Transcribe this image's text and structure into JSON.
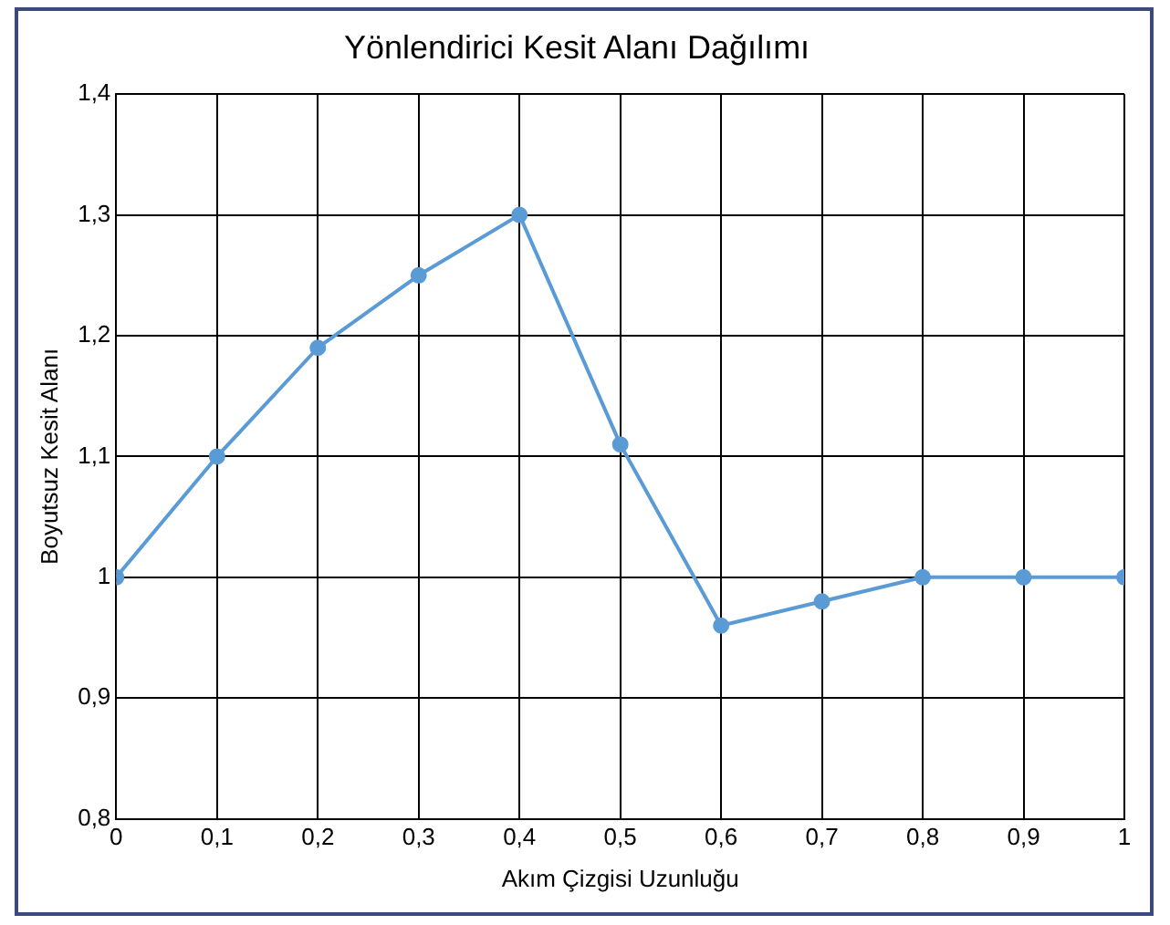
{
  "chart_data": {
    "type": "line",
    "title": "Yönlendirici Kesit Alanı Dağılımı",
    "xlabel": "Akım Çizgisi Uzunluğu",
    "ylabel": "Boyutsuz Kesit Alanı",
    "x": [
      0,
      0.1,
      0.2,
      0.3,
      0.4,
      0.5,
      0.6,
      0.7,
      0.8,
      0.9,
      1
    ],
    "series": [
      {
        "color": "#5b9bd5",
        "values": [
          1,
          1.1,
          1.19,
          1.25,
          1.3,
          1.11,
          0.96,
          0.98,
          1,
          1,
          1
        ]
      }
    ],
    "xlim": [
      0,
      1
    ],
    "ylim": [
      0.8,
      1.4
    ],
    "xticks": [
      0,
      {
        "value": 0.1,
        "label": "0,1"
      },
      {
        "value": 0.2,
        "label": "0,2"
      },
      {
        "value": 0.3,
        "label": "0,3"
      },
      {
        "value": 0.4,
        "label": "0,4"
      },
      {
        "value": 0.5,
        "label": "0,5"
      },
      {
        "value": 0.6,
        "label": "0,6"
      },
      {
        "value": 0.7,
        "label": "0,7"
      },
      {
        "value": 0.8,
        "label": "0,8"
      },
      {
        "value": 0.9,
        "label": "0,9"
      },
      1
    ],
    "yticks": [
      {
        "value": 0.8,
        "label": "0,8"
      },
      {
        "value": 0.9,
        "label": "0,9"
      },
      1,
      {
        "value": 1.1,
        "label": "1,1"
      },
      {
        "value": 1.2,
        "label": "1,2"
      },
      {
        "value": 1.3,
        "label": "1,3"
      },
      {
        "value": 1.4,
        "label": "1,4"
      }
    ],
    "grid": true,
    "marker": "circle",
    "line_style": "solid",
    "legend": false
  }
}
